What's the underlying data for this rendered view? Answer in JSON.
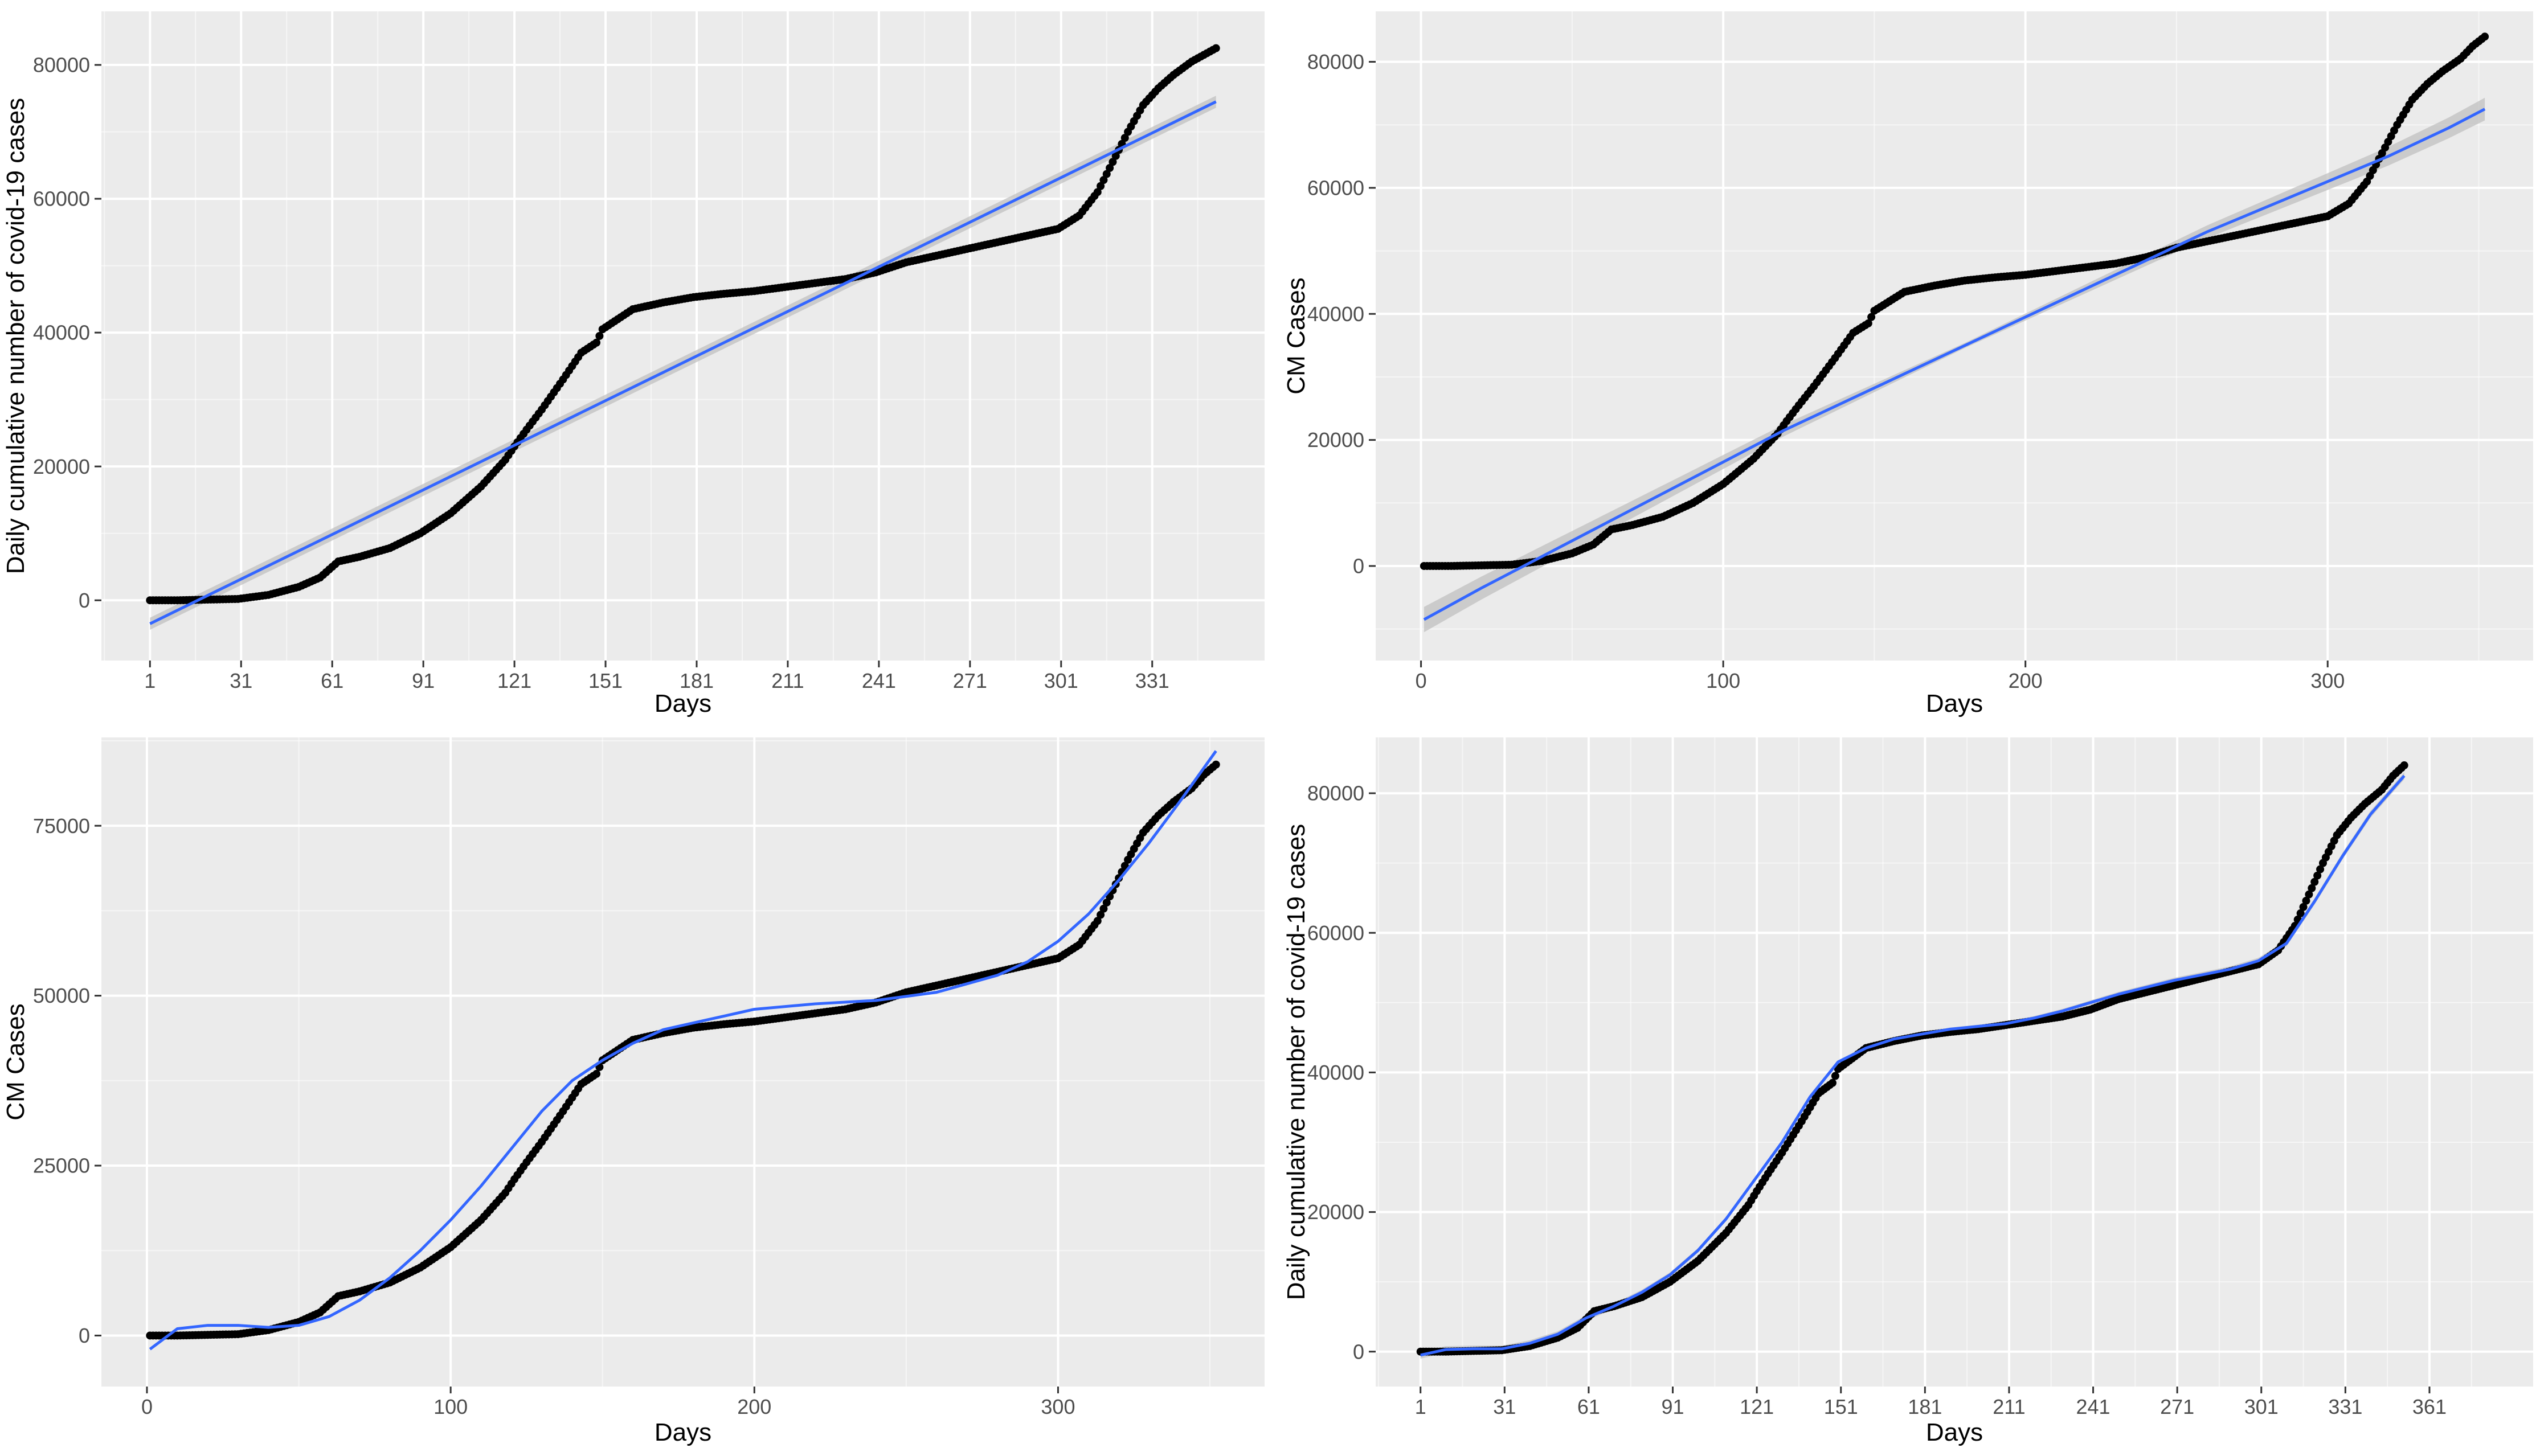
{
  "colors": {
    "panel_bg": "#EBEBEB",
    "grid_major": "#FFFFFF",
    "points": "#000000",
    "fit_line": "#3366FF",
    "confidence_band": "#BDBDBD",
    "tick_text": "#4D4D4D",
    "tick_mark": "#333333"
  },
  "chart_data": [
    {
      "id": "top-left",
      "type": "scatter",
      "fit": "linear",
      "confidence_band": true,
      "xlabel": "Days",
      "ylabel": "Daily cumulative number of covid-19 cases",
      "xlim": [
        -15,
        368
      ],
      "ylim": [
        -9000,
        88000
      ],
      "xticks": [
        1,
        31,
        61,
        91,
        121,
        151,
        181,
        211,
        241,
        271,
        301,
        331
      ],
      "xtick_labels": [
        "1",
        "31",
        "61",
        "91",
        "121",
        "151",
        "181",
        "211",
        "241",
        "271",
        "301",
        "331"
      ],
      "yticks": [
        0,
        20000,
        40000,
        60000,
        80000
      ],
      "ytick_labels": [
        "0",
        "20000",
        "40000",
        "60000",
        "80000"
      ],
      "grid": true,
      "fit_curve": {
        "x": [
          1,
          352
        ],
        "y": [
          -3500,
          74500
        ]
      },
      "band_halfwidth": [
        900,
        300,
        900
      ],
      "series_points": {
        "x": [
          1,
          10,
          20,
          30,
          40,
          50,
          57,
          60,
          63,
          70,
          80,
          90,
          100,
          110,
          118,
          121,
          125,
          130,
          137,
          140,
          143,
          148,
          150,
          155,
          160,
          170,
          180,
          190,
          200,
          210,
          220,
          230,
          240,
          250,
          260,
          270,
          280,
          290,
          300,
          307,
          313,
          318,
          323,
          328,
          333,
          338,
          344,
          348,
          352
        ],
        "y": [
          0,
          0,
          100,
          200,
          800,
          2000,
          3400,
          4600,
          5800,
          6500,
          7800,
          10000,
          13000,
          17000,
          21000,
          23000,
          25500,
          28500,
          33000,
          35000,
          37000,
          38500,
          40500,
          42000,
          43500,
          44500,
          45300,
          45800,
          46200,
          46800,
          47400,
          48000,
          49000,
          50500,
          51500,
          52500,
          53500,
          54500,
          55500,
          57500,
          61000,
          65500,
          70000,
          74000,
          76500,
          78500,
          80500,
          81500,
          82500
        ]
      }
    },
    {
      "id": "top-right",
      "type": "scatter",
      "fit": "quadratic",
      "confidence_band": true,
      "xlabel": "Days",
      "ylabel": "CM Cases",
      "xlim": [
        -15,
        368
      ],
      "ylim": [
        -15000,
        88000
      ],
      "xticks": [
        0,
        100,
        200,
        300
      ],
      "xtick_labels": [
        "0",
        "100",
        "200",
        "300"
      ],
      "yticks": [
        0,
        20000,
        40000,
        60000,
        80000
      ],
      "ytick_labels": [
        "0",
        "20000",
        "40000",
        "60000",
        "80000"
      ],
      "grid": true,
      "fit_curve": {
        "x": [
          1,
          20,
          40,
          60,
          80,
          100,
          120,
          140,
          160,
          180,
          200,
          220,
          240,
          260,
          280,
          300,
          320,
          340,
          352
        ],
        "y": [
          -8500,
          -3500,
          1500,
          6500,
          11500,
          16500,
          21500,
          26000,
          30500,
          35000,
          39500,
          44000,
          48500,
          53000,
          57000,
          61000,
          65000,
          69500,
          72500
        ]
      },
      "band_halfwidth": [
        2000,
        400,
        1800
      ],
      "series_points": {
        "x": [
          1,
          10,
          20,
          30,
          40,
          50,
          57,
          60,
          63,
          70,
          80,
          90,
          100,
          110,
          118,
          121,
          125,
          130,
          137,
          140,
          143,
          148,
          150,
          155,
          160,
          170,
          180,
          190,
          200,
          210,
          220,
          230,
          240,
          250,
          260,
          270,
          280,
          290,
          300,
          307,
          313,
          318,
          323,
          328,
          333,
          338,
          344,
          348,
          352
        ],
        "y": [
          0,
          0,
          100,
          200,
          800,
          2000,
          3400,
          4600,
          5800,
          6500,
          7800,
          10000,
          13000,
          17000,
          21000,
          23000,
          25500,
          28500,
          33000,
          35000,
          37000,
          38500,
          40500,
          42000,
          43500,
          44500,
          45300,
          45800,
          46200,
          46800,
          47400,
          48000,
          49000,
          50500,
          51500,
          52500,
          53500,
          54500,
          55500,
          57500,
          61000,
          65500,
          70000,
          74000,
          76500,
          78500,
          80500,
          82500,
          84000
        ]
      }
    },
    {
      "id": "bottom-left",
      "type": "scatter",
      "fit": "polynomial",
      "confidence_band": false,
      "xlabel": "Days",
      "ylabel": "CM Cases",
      "xlim": [
        -15,
        368
      ],
      "ylim": [
        -7500,
        88000
      ],
      "xticks": [
        0,
        100,
        200,
        300
      ],
      "xtick_labels": [
        "0",
        "100",
        "200",
        "300"
      ],
      "yticks": [
        0,
        25000,
        50000,
        75000
      ],
      "ytick_labels": [
        "0",
        "25000",
        "50000",
        "75000"
      ],
      "grid": true,
      "fit_curve": {
        "x": [
          1,
          10,
          20,
          30,
          40,
          50,
          60,
          70,
          80,
          90,
          100,
          110,
          120,
          130,
          140,
          150,
          160,
          170,
          180,
          200,
          220,
          240,
          260,
          280,
          290,
          300,
          310,
          320,
          330,
          340,
          352
        ],
        "y": [
          -2000,
          1000,
          1500,
          1500,
          1200,
          1500,
          2800,
          5200,
          8500,
          12500,
          17000,
          22000,
          27500,
          33000,
          37500,
          40500,
          43000,
          45000,
          46000,
          48000,
          48800,
          49300,
          50500,
          53000,
          55000,
          58000,
          62000,
          67000,
          72500,
          78500,
          86000
        ]
      },
      "series_points": {
        "x": [
          1,
          10,
          20,
          30,
          40,
          50,
          57,
          60,
          63,
          70,
          80,
          90,
          100,
          110,
          118,
          121,
          125,
          130,
          137,
          140,
          143,
          148,
          150,
          155,
          160,
          170,
          180,
          190,
          200,
          210,
          220,
          230,
          240,
          250,
          260,
          270,
          280,
          290,
          300,
          307,
          313,
          318,
          323,
          328,
          333,
          338,
          344,
          348,
          352
        ],
        "y": [
          0,
          0,
          100,
          200,
          800,
          2000,
          3400,
          4600,
          5800,
          6500,
          7800,
          10000,
          13000,
          17000,
          21000,
          23000,
          25500,
          28500,
          33000,
          35000,
          37000,
          38500,
          40500,
          42000,
          43500,
          44500,
          45300,
          45800,
          46200,
          46800,
          47400,
          48000,
          49000,
          50500,
          51500,
          52500,
          53500,
          54500,
          55500,
          57500,
          61000,
          65500,
          70000,
          74000,
          76500,
          78500,
          80500,
          82500,
          84000
        ]
      }
    },
    {
      "id": "bottom-right",
      "type": "scatter",
      "fit": "loess",
      "confidence_band": true,
      "xlabel": "Days",
      "ylabel": "Daily cumulative number of covid-19 cases",
      "xlim": [
        -15,
        398
      ],
      "ylim": [
        -5000,
        88000
      ],
      "xticks": [
        1,
        31,
        61,
        91,
        121,
        151,
        181,
        211,
        241,
        271,
        301,
        331,
        361
      ],
      "xtick_labels": [
        "1",
        "31",
        "61",
        "91",
        "121",
        "151",
        "181",
        "211",
        "241",
        "271",
        "301",
        "331",
        "361"
      ],
      "yticks": [
        0,
        20000,
        40000,
        60000,
        80000
      ],
      "ytick_labels": [
        "0",
        "20000",
        "40000",
        "60000",
        "80000"
      ],
      "grid": true,
      "fit_curve": {
        "x": [
          1,
          10,
          20,
          30,
          40,
          50,
          60,
          70,
          80,
          90,
          100,
          110,
          120,
          130,
          140,
          150,
          160,
          170,
          180,
          190,
          200,
          210,
          220,
          230,
          240,
          250,
          260,
          270,
          280,
          290,
          300,
          310,
          320,
          330,
          340,
          352
        ],
        "y": [
          -500,
          300,
          400,
          400,
          1200,
          2500,
          4800,
          6500,
          8500,
          11000,
          14500,
          19000,
          24500,
          30000,
          36500,
          41500,
          43500,
          44800,
          45500,
          46200,
          46600,
          47000,
          47800,
          48800,
          50000,
          51200,
          52200,
          53200,
          54000,
          54800,
          56000,
          58500,
          64500,
          71000,
          77000,
          82500
        ]
      },
      "band_halfwidth": [
        500,
        200,
        500
      ],
      "series_points": {
        "x": [
          1,
          10,
          20,
          30,
          40,
          50,
          57,
          60,
          63,
          70,
          80,
          90,
          100,
          110,
          118,
          121,
          125,
          130,
          137,
          140,
          143,
          148,
          150,
          155,
          160,
          170,
          180,
          190,
          200,
          210,
          220,
          230,
          240,
          250,
          260,
          270,
          280,
          290,
          300,
          307,
          313,
          318,
          323,
          328,
          333,
          338,
          344,
          348,
          352
        ],
        "y": [
          0,
          0,
          100,
          200,
          800,
          2000,
          3400,
          4600,
          5800,
          6500,
          7800,
          10000,
          13000,
          17000,
          21000,
          23000,
          25500,
          28500,
          33000,
          35000,
          37000,
          38500,
          40500,
          42000,
          43500,
          44500,
          45300,
          45800,
          46200,
          46800,
          47400,
          48000,
          49000,
          50500,
          51500,
          52500,
          53500,
          54500,
          55500,
          57500,
          61000,
          65500,
          70000,
          74000,
          76500,
          78500,
          80500,
          82500,
          84000
        ]
      }
    }
  ]
}
